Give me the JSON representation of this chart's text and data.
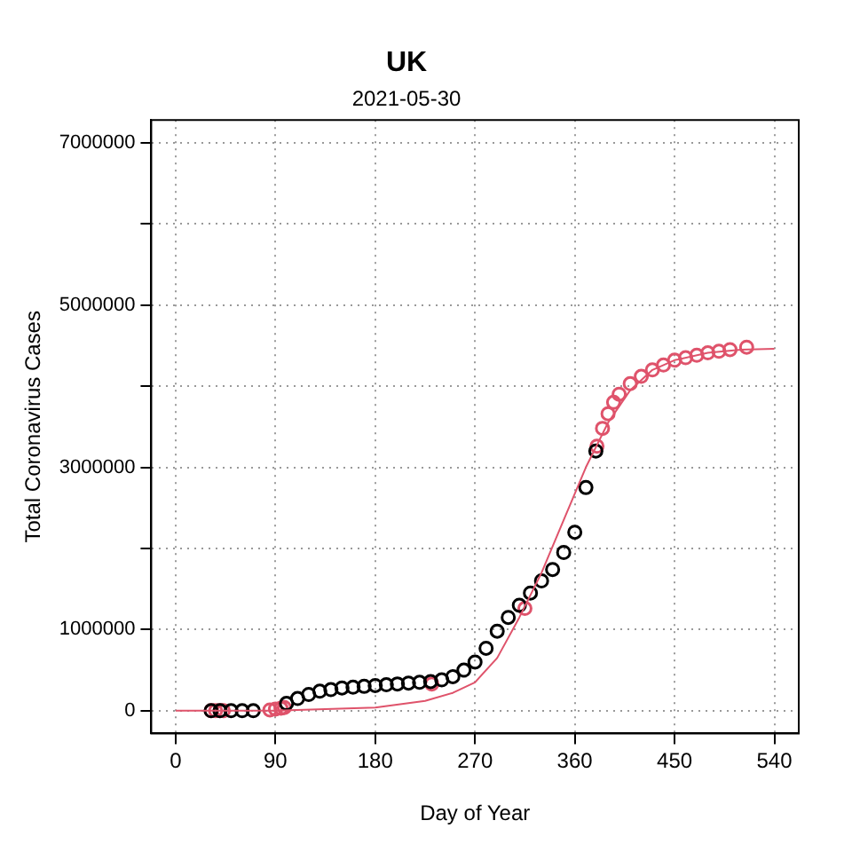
{
  "chart_data": {
    "type": "scatter",
    "title": "UK",
    "subtitle": "2021-05-30",
    "xlabel": "Day of Year",
    "ylabel": "Total Coronavirus Cases",
    "xlim": [
      -22,
      562
    ],
    "xticks": [
      0,
      90,
      180,
      270,
      360,
      450,
      540
    ],
    "ylim": [
      -280000,
      7280000
    ],
    "yticks": [
      0,
      1000000,
      {
        "value": 2000000,
        "label": null
      },
      3000000,
      {
        "value": 4000000,
        "label": null
      },
      5000000,
      {
        "value": 6000000,
        "label": null
      },
      7000000
    ],
    "grid": true,
    "legend": false,
    "marker": "circle",
    "series": [
      {
        "color": "#000000",
        "x": [
          32,
          40,
          50,
          60,
          70,
          100,
          110,
          120,
          130,
          140,
          150,
          160,
          170,
          180,
          190,
          200,
          210,
          220,
          230,
          240,
          250,
          260,
          270,
          280,
          290,
          300,
          310,
          320,
          330,
          340,
          350,
          360,
          370,
          379
        ],
        "values": [
          0,
          0,
          0,
          0,
          0,
          90000,
          150000,
          200000,
          240000,
          260000,
          280000,
          290000,
          300000,
          310000,
          320000,
          330000,
          340000,
          350000,
          360000,
          380000,
          420000,
          500000,
          600000,
          770000,
          980000,
          1150000,
          1300000,
          1450000,
          1600000,
          1740000,
          1950000,
          2200000,
          2750000,
          3200000
        ]
      },
      {
        "color": "#df536b",
        "x": [
          32,
          36,
          40,
          43,
          85,
          90,
          95,
          98,
          231,
          315,
          380,
          385,
          390,
          395,
          400,
          410,
          420,
          430,
          440,
          450,
          460,
          470,
          480,
          490,
          500,
          515
        ],
        "values": [
          0,
          0,
          0,
          0,
          10000,
          20000,
          30000,
          40000,
          330000,
          1260000,
          3260000,
          3480000,
          3660000,
          3800000,
          3900000,
          4030000,
          4120000,
          4200000,
          4260000,
          4320000,
          4350000,
          4380000,
          4410000,
          4430000,
          4450000,
          4480000
        ]
      },
      {
        "type": "line",
        "marker": "none",
        "color": "#df536b",
        "x": [
          0,
          90,
          180,
          225,
          250,
          270,
          290,
          310,
          330,
          350,
          370,
          390,
          410,
          430,
          450,
          480,
          510,
          540
        ],
        "values": [
          0,
          0,
          40000,
          120000,
          220000,
          350000,
          650000,
          1150000,
          1700000,
          2350000,
          3000000,
          3550000,
          3950000,
          4200000,
          4320000,
          4410000,
          4450000,
          4460000
        ]
      }
    ]
  }
}
